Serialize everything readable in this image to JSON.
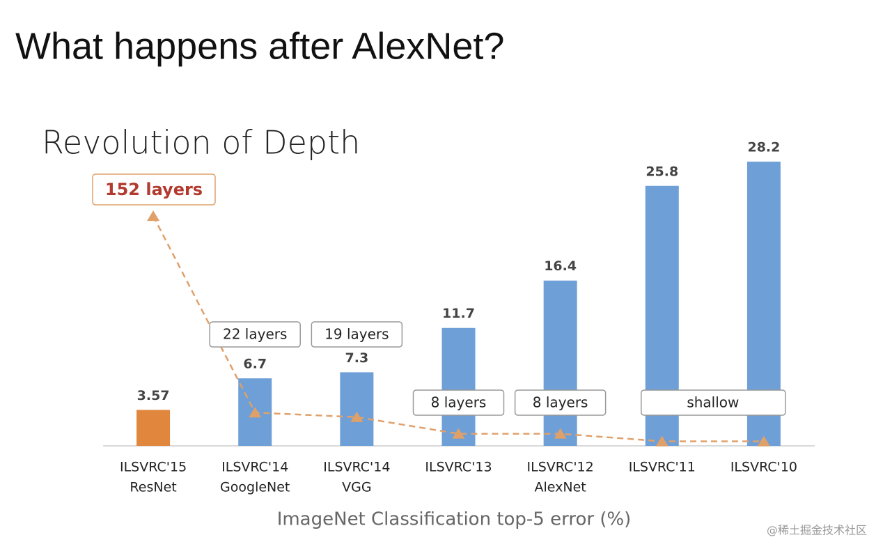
{
  "slide_title": "What happens after AlexNet?",
  "watermark": "@稀土掘金技术社区",
  "chart_data": {
    "type": "bar",
    "title": "Revolution of Depth",
    "x_label": "ImageNet Classification top-5 error (%)",
    "categories": [
      [
        "ILSVRC'15",
        "ResNet"
      ],
      [
        "ILSVRC'14",
        "GoogleNet"
      ],
      [
        "ILSVRC'14",
        "VGG"
      ],
      [
        "ILSVRC'13"
      ],
      [
        "ILSVRC'12",
        "AlexNet"
      ],
      [
        "ILSVRC'11"
      ],
      [
        "ILSVRC'10"
      ]
    ],
    "values": [
      3.57,
      6.7,
      7.3,
      11.7,
      16.4,
      25.8,
      28.2
    ],
    "colors": [
      "#e0873d",
      "#6e9fd6",
      "#6e9fd6",
      "#6e9fd6",
      "#6e9fd6",
      "#6e9fd6",
      "#6e9fd6"
    ],
    "ylim": [
      0,
      30
    ],
    "y2lim": [
      0,
      200
    ],
    "series": [
      {
        "name": "layers",
        "type": "line",
        "axis": "y2",
        "color": "#e0a06a",
        "values": [
          152,
          22,
          19,
          8,
          8,
          3,
          3
        ],
        "value_labels": [
          "152 layers",
          "22 layers",
          "19 layers",
          "8 layers",
          "8 layers",
          null,
          null
        ]
      }
    ],
    "annotation": "shallow"
  }
}
